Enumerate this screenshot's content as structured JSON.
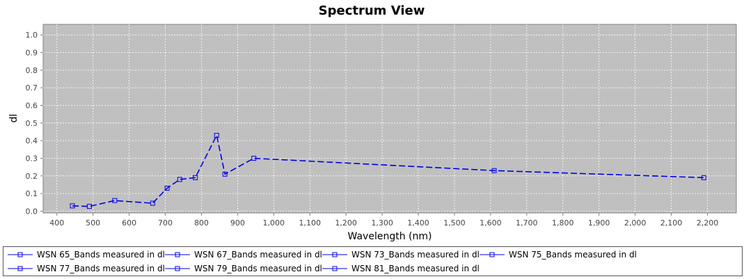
{
  "colors": {
    "series": "#0000e6",
    "plot_background": "#c0c0c0",
    "grid": "#ffffff"
  },
  "chart_data": {
    "type": "line",
    "title": "Spectrum View",
    "xlabel": "Wavelength (nm)",
    "ylabel": "dl",
    "xlim": [
      362,
      2280
    ],
    "ylim": [
      -0.01,
      1.06
    ],
    "x_ticks": [
      400,
      500,
      600,
      700,
      800,
      900,
      1000,
      1100,
      1200,
      1300,
      1400,
      1500,
      1600,
      1700,
      1800,
      1900,
      2000,
      2100,
      2200
    ],
    "x_tick_labels": [
      "400",
      "500",
      "600",
      "700",
      "800",
      "900",
      "1,000",
      "1,100",
      "1,200",
      "1,300",
      "1,400",
      "1,500",
      "1,600",
      "1,700",
      "1,800",
      "1,900",
      "2,000",
      "2,100",
      "2,200"
    ],
    "y_ticks": [
      0.0,
      0.1,
      0.2,
      0.3,
      0.4,
      0.5,
      0.6,
      0.7,
      0.8,
      0.9,
      1.0
    ],
    "y_tick_labels": [
      "0.0",
      "0.1",
      "0.2",
      "0.3",
      "0.4",
      "0.5",
      "0.6",
      "0.7",
      "0.8",
      "0.9",
      "1.0"
    ],
    "grid": true,
    "legend_position": "bottom",
    "series": [
      {
        "name": "WSN 81_Bands measured in dl",
        "x": [
          443,
          490,
          560,
          665,
          705,
          740,
          783,
          842,
          865,
          945,
          1610,
          2190
        ],
        "y": [
          0.03,
          0.027,
          0.06,
          0.045,
          0.13,
          0.18,
          0.19,
          0.43,
          0.21,
          0.3,
          0.23,
          0.19
        ]
      }
    ],
    "legend": [
      "WSN 65_Bands measured in dl",
      "WSN 67_Bands measured in dl",
      "WSN 73_Bands measured in dl",
      "WSN 75_Bands measured in dl",
      "WSN 77_Bands measured in dl",
      "WSN 79_Bands measured in dl",
      "WSN 81_Bands measured in dl"
    ]
  }
}
